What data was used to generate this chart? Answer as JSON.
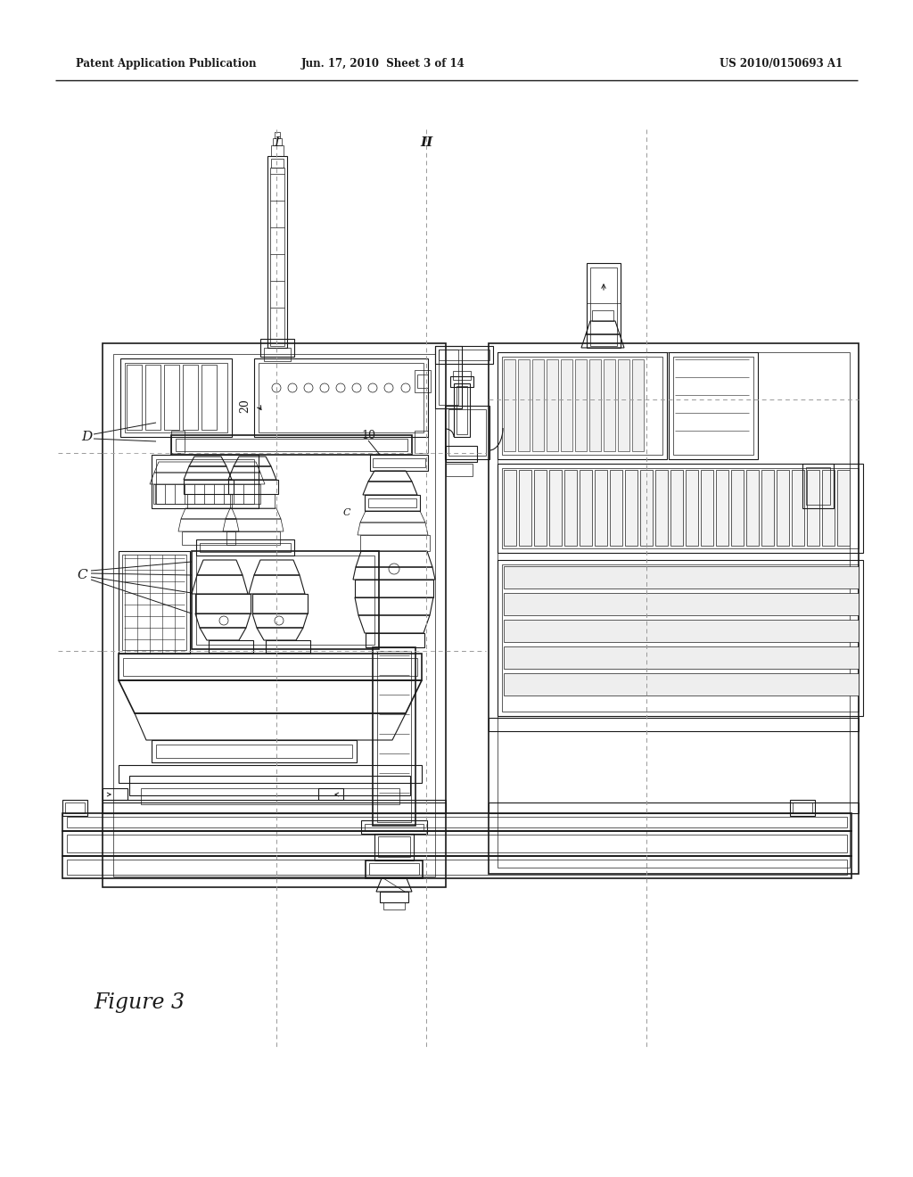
{
  "bg_color": "#ffffff",
  "line_color": "#1a1a1a",
  "gray_line": "#888888",
  "light_gray": "#bbbbbb",
  "header_left": "Patent Application Publication",
  "header_center": "Jun. 17, 2010  Sheet 3 of 14",
  "header_right": "US 2010/0150693 A1",
  "figure_label": "Figure 3",
  "label_I": "I",
  "label_II": "II",
  "label_D": "D",
  "label_C": "C",
  "label_10": "10",
  "label_20": "20"
}
